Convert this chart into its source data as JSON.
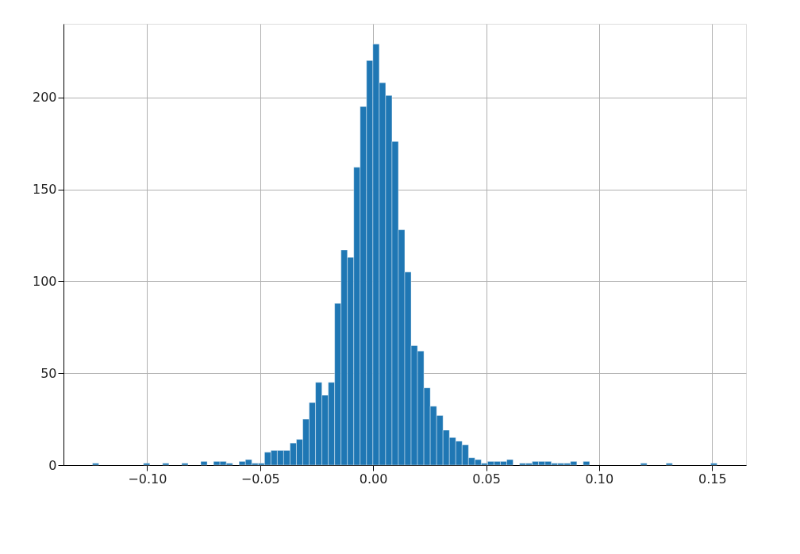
{
  "chart_data": {
    "type": "histogram",
    "color": "#1f77b4",
    "bins": [
      -0.127,
      -0.12418,
      -0.12136,
      -0.11854,
      -0.11572,
      -0.1129,
      -0.11008,
      -0.10726,
      -0.10444,
      -0.10162,
      -0.0988,
      -0.09598,
      -0.09316,
      -0.09034,
      -0.08752,
      -0.0847,
      -0.08188,
      -0.07906,
      -0.07624,
      -0.07342,
      -0.0706,
      -0.06778,
      -0.06496,
      -0.06214,
      -0.05932,
      -0.0565,
      -0.05368,
      -0.05086,
      -0.04804,
      -0.04522,
      -0.0424,
      -0.03958,
      -0.03676,
      -0.03394,
      -0.03112,
      -0.0283,
      -0.02548,
      -0.02266,
      -0.01984,
      -0.01702,
      -0.0142,
      -0.01138,
      -0.00856,
      -0.00574,
      -0.00292,
      -0.0001,
      0.00272,
      0.00554,
      0.00836,
      0.01118,
      0.014,
      0.01682,
      0.01964,
      0.02246,
      0.02528,
      0.0281,
      0.03092,
      0.03374,
      0.03656,
      0.03938,
      0.0422,
      0.04502,
      0.04784,
      0.05066,
      0.05348,
      0.0563,
      0.05912,
      0.06194,
      0.06476,
      0.06758,
      0.0704,
      0.07322,
      0.07604,
      0.07886,
      0.08168,
      0.0845,
      0.08732,
      0.09014,
      0.09296,
      0.09578,
      0.0986,
      0.10142,
      0.10424,
      0.10706,
      0.10988,
      0.1127,
      0.11552,
      0.11834,
      0.12116,
      0.12398,
      0.1268,
      0.12962,
      0.13244,
      0.13526,
      0.13808,
      0.1409,
      0.14372,
      0.14654,
      0.14936,
      0.15218,
      0.155
    ],
    "values": [
      0,
      1,
      0,
      0,
      0,
      0,
      0,
      0,
      0,
      1,
      0,
      0,
      1,
      0,
      0,
      1,
      0,
      0,
      2,
      0,
      2,
      2,
      1,
      0,
      2,
      3,
      1,
      1,
      7,
      8,
      8,
      8,
      12,
      14,
      25,
      34,
      45,
      38,
      45,
      88,
      117,
      113,
      162,
      195,
      220,
      229,
      208,
      201,
      176,
      128,
      105,
      65,
      62,
      42,
      32,
      27,
      19,
      15,
      13,
      11,
      4,
      3,
      1,
      2,
      2,
      2,
      3,
      0,
      1,
      1,
      2,
      2,
      2,
      1,
      1,
      1,
      2,
      0,
      2,
      0,
      0,
      0,
      0,
      0,
      0,
      0,
      0,
      1,
      0,
      0,
      0,
      1,
      0,
      0,
      0,
      0,
      0,
      0,
      1,
      0
    ],
    "xlim": [
      -0.137,
      0.165
    ],
    "xticks": [
      {
        "value": -0.1,
        "label": "−0.10"
      },
      {
        "value": -0.05,
        "label": "−0.05"
      },
      {
        "value": 0,
        "label": "0.00"
      },
      {
        "value": 0.05,
        "label": "0.05"
      },
      {
        "value": 0.1,
        "label": "0.10"
      },
      {
        "value": 0.15,
        "label": "0.15"
      }
    ],
    "ylim": [
      0,
      240
    ],
    "yticks": [
      0,
      50,
      100,
      150,
      200
    ],
    "grid": true
  }
}
